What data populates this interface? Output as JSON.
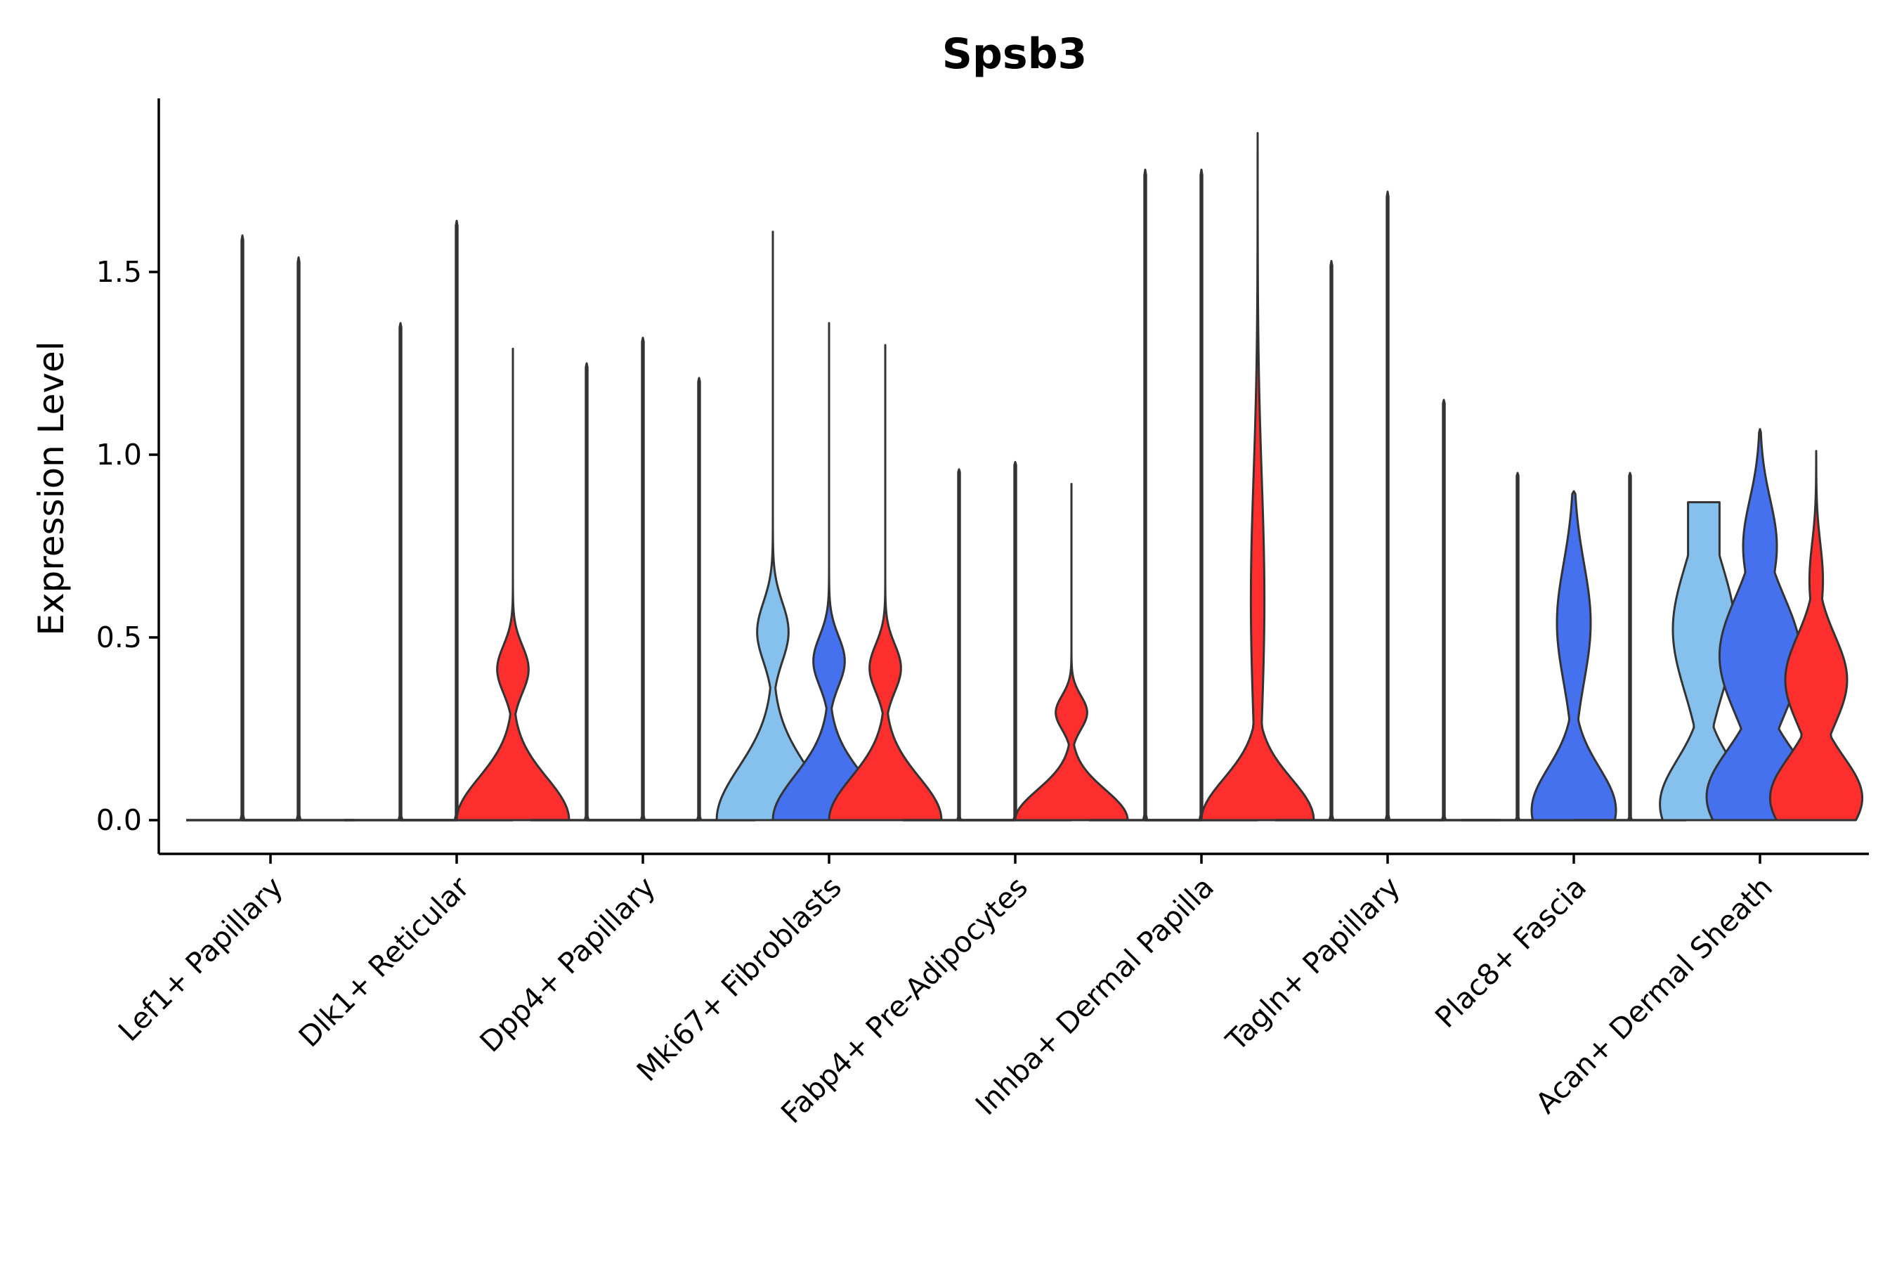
{
  "chart_data": {
    "type": "violin",
    "title": "Spsb3",
    "xlabel": "",
    "ylabel": "Expression Level",
    "ylim": [
      -0.1,
      1.97
    ],
    "yticks": [
      0.0,
      0.5,
      1.0,
      1.5
    ],
    "ytick_labels": [
      "0.0",
      "0.5",
      "1.0",
      "1.5"
    ],
    "grid": false,
    "legend": "none",
    "colors": {
      "light": "#85C1EC",
      "blue": "#4570EE",
      "red": "#FD2F2E",
      "stroke": "#333333"
    },
    "conditions": [
      "light",
      "blue",
      "red"
    ],
    "categories": [
      "Lef1+ Papillary",
      "Dlk1+ Reticular",
      "Dpp4+ Papillary",
      "Mki67+ Fibroblasts",
      "Fabp4+ Pre-Adipocytes",
      "Inhba+ Dermal Papilla",
      "Tagln+ Papillary",
      "Plac8+ Fascia",
      "Acan+ Dermal Sheath"
    ],
    "violins": [
      {
        "group": 0,
        "pos": -0.5,
        "color": "light",
        "max": 1.6,
        "profile": "line"
      },
      {
        "group": 0,
        "pos": 0.5,
        "color": "light",
        "max": 1.54,
        "profile": "line"
      },
      {
        "group": 1,
        "pos": -1,
        "color": "light",
        "max": 1.36,
        "profile": "line"
      },
      {
        "group": 1,
        "pos": 0,
        "color": "blue",
        "max": 1.64,
        "profile": "line"
      },
      {
        "group": 1,
        "pos": 1,
        "color": "red",
        "max": 1.29,
        "profile": "bump_upper"
      },
      {
        "group": 2,
        "pos": -1,
        "color": "light",
        "max": 1.25,
        "profile": "line"
      },
      {
        "group": 2,
        "pos": 0,
        "color": "blue",
        "max": 1.32,
        "profile": "line"
      },
      {
        "group": 2,
        "pos": 1,
        "color": "red",
        "max": 1.21,
        "profile": "line"
      },
      {
        "group": 3,
        "pos": -1,
        "color": "light",
        "max": 1.61,
        "profile": "bump_upper"
      },
      {
        "group": 3,
        "pos": 0,
        "color": "blue",
        "max": 1.36,
        "profile": "bump_upper"
      },
      {
        "group": 3,
        "pos": 1,
        "color": "red",
        "max": 1.3,
        "profile": "bump_upper"
      },
      {
        "group": 4,
        "pos": -1,
        "color": "light",
        "max": 0.96,
        "profile": "line"
      },
      {
        "group": 4,
        "pos": 0,
        "color": "blue",
        "max": 0.98,
        "profile": "line"
      },
      {
        "group": 4,
        "pos": 1,
        "color": "red",
        "max": 0.92,
        "profile": "bump_upper"
      },
      {
        "group": 5,
        "pos": -1,
        "color": "light",
        "max": 1.78,
        "profile": "line"
      },
      {
        "group": 5,
        "pos": 0,
        "color": "blue",
        "max": 1.78,
        "profile": "line"
      },
      {
        "group": 5,
        "pos": 1,
        "color": "red",
        "max": 1.88,
        "profile": "bump_tall"
      },
      {
        "group": 6,
        "pos": -1,
        "color": "light",
        "max": 1.53,
        "profile": "line"
      },
      {
        "group": 6,
        "pos": 0,
        "color": "blue",
        "max": 1.72,
        "profile": "line"
      },
      {
        "group": 6,
        "pos": 1,
        "color": "red",
        "max": 1.15,
        "profile": "line"
      },
      {
        "group": 7,
        "pos": -1,
        "color": "light",
        "max": 0.95,
        "profile": "line"
      },
      {
        "group": 7,
        "pos": 0,
        "color": "blue",
        "max": 0.9,
        "profile": "bimodal_narrow"
      },
      {
        "group": 7,
        "pos": 1,
        "color": "red",
        "max": 0.95,
        "profile": "line"
      },
      {
        "group": 8,
        "pos": -1,
        "color": "light",
        "max": 0.87,
        "profile": "flat_top"
      },
      {
        "group": 8,
        "pos": 0,
        "color": "blue",
        "max": 1.07,
        "profile": "wide"
      },
      {
        "group": 8,
        "pos": 1,
        "color": "red",
        "max": 1.01,
        "profile": "medium"
      }
    ]
  }
}
